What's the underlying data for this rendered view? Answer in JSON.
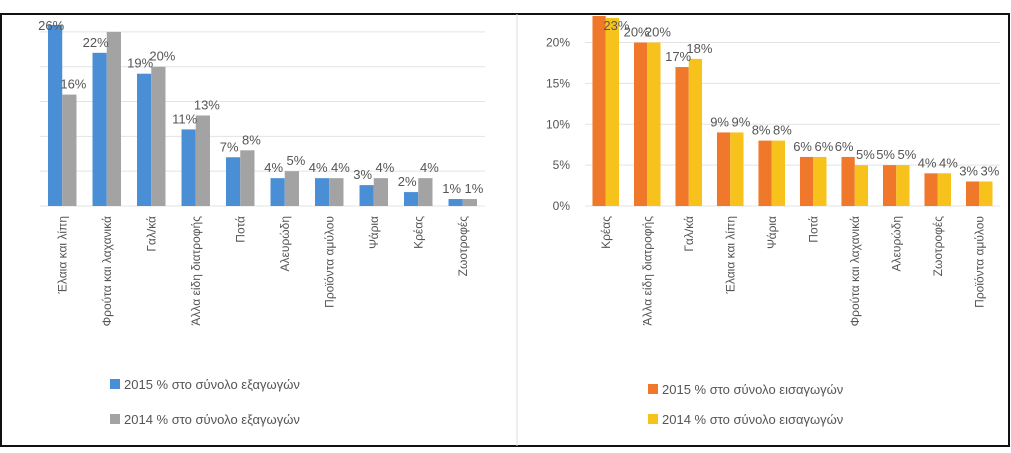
{
  "chart_data": [
    {
      "type": "bar",
      "categories": [
        "Έλαια και λίπη",
        "Φρούτα και λαχανικά",
        "Γαλ/κά",
        "Άλλα είδη διατροφής",
        "Ποτά",
        "Αλευρώδη",
        "Προϊόντα αμύλου",
        "Ψάρια",
        "Κρέας",
        "Ζωοτροφές"
      ],
      "series": [
        {
          "name": "2015 % στο σύνολο εξαγωγών",
          "color": "#4a8fd6",
          "values": [
            26,
            22,
            19,
            11,
            7,
            4,
            4,
            3,
            2,
            1
          ],
          "value_labels": [
            "26%",
            "22%",
            "19%",
            "11%",
            "7%",
            "4%",
            "4%",
            "3%",
            "2%",
            "1%"
          ]
        },
        {
          "name": "2014 % στο σύνολο εξαγωγών",
          "color": "#a3a3a3",
          "values": [
            16,
            25,
            20,
            13,
            8,
            5,
            4,
            4,
            4,
            1
          ],
          "value_labels": [
            "16%",
            null,
            "20%",
            "13%",
            "8%",
            "5%",
            "4%",
            "4%",
            "4%",
            "1%"
          ]
        }
      ],
      "ylim": [
        0,
        27
      ],
      "yticks": [
        0,
        5,
        10,
        15,
        20,
        25
      ],
      "grid": true
    },
    {
      "type": "bar",
      "categories": [
        "Κρέας",
        "Άλλα είδη διατροφής",
        "Γαλ/κά",
        "Έλαια και λίπη",
        "Ψάρια",
        "Ποτά",
        "Φρούτα και λαχανικά",
        "Αλευρώδη",
        "Ζωοτροφές",
        "Προϊόντα αμύλου"
      ],
      "series": [
        {
          "name": "2015 % στο σύνολο εισαγωγών",
          "color": "#f0782a",
          "values": [
            24,
            20,
            17,
            9,
            8,
            6,
            6,
            5,
            4,
            3
          ],
          "value_labels": [
            null,
            "20%",
            "17%",
            "9%",
            "8%",
            "6%",
            "6%",
            "5%",
            "4%",
            "3%"
          ]
        },
        {
          "name": "2014 % στο σύνολο εισαγωγών",
          "color": "#f8c21c",
          "values": [
            23,
            20,
            18,
            9,
            8,
            6,
            5,
            5,
            4,
            3
          ],
          "value_labels": [
            "23%",
            "20%",
            "18%",
            "9%",
            "8%",
            "6%",
            "5%",
            "5%",
            "4%",
            "3%"
          ]
        }
      ],
      "ylim": [
        0,
        23
      ],
      "yticks": [
        {
          "value": 0,
          "label": "0%"
        },
        {
          "value": 5,
          "label": "5%"
        },
        {
          "value": 10,
          "label": "10%"
        },
        {
          "value": 15,
          "label": "15%"
        },
        {
          "value": 20,
          "label": "20%"
        }
      ],
      "grid": true
    }
  ]
}
